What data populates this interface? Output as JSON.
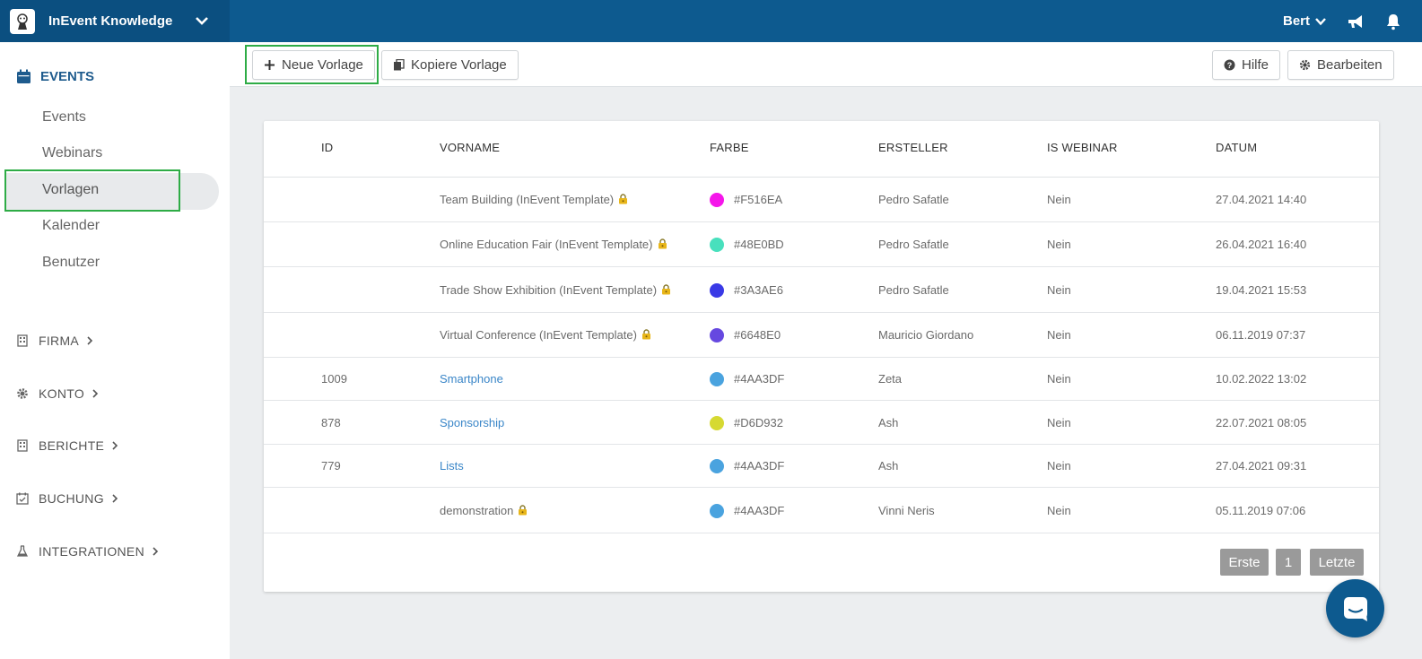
{
  "app": {
    "name": "InEvent Knowledge",
    "user": "Bert"
  },
  "sidebar": {
    "events_section": "EVENTS",
    "items": [
      {
        "label": "Events"
      },
      {
        "label": "Webinars"
      },
      {
        "label": "Vorlagen"
      },
      {
        "label": "Kalender"
      },
      {
        "label": "Benutzer"
      }
    ],
    "sections": [
      {
        "label": "FIRMA",
        "icon": "building-icon"
      },
      {
        "label": "KONTO",
        "icon": "gear-icon"
      },
      {
        "label": "BERICHTE",
        "icon": "building-icon"
      },
      {
        "label": "BUCHUNG",
        "icon": "calendar-check-icon"
      },
      {
        "label": "INTEGRATIONEN",
        "icon": "flask-icon"
      }
    ]
  },
  "toolbar": {
    "new_template": "Neue Vorlage",
    "copy_template": "Kopiere Vorlage",
    "help": "Hilfe",
    "edit": "Bearbeiten"
  },
  "table": {
    "headers": {
      "id": "ID",
      "name": "VORNAME",
      "color": "FARBE",
      "creator": "ERSTELLER",
      "webinar": "IS WEBINAR",
      "date": "DATUM"
    },
    "rows": [
      {
        "id": "",
        "name": "Team Building (InEvent Template)",
        "locked": true,
        "link": false,
        "color": "#F516EA",
        "creator": "Pedro Safatle",
        "webinar": "Nein",
        "date": "27.04.2021 14:40"
      },
      {
        "id": "",
        "name": "Online Education Fair (InEvent Template)",
        "locked": true,
        "link": false,
        "color": "#48E0BD",
        "creator": "Pedro Safatle",
        "webinar": "Nein",
        "date": "26.04.2021 16:40"
      },
      {
        "id": "",
        "name": "Trade Show Exhibition (InEvent Template)",
        "locked": true,
        "link": false,
        "color": "#3A3AE6",
        "creator": "Pedro Safatle",
        "webinar": "Nein",
        "date": "19.04.2021 15:53"
      },
      {
        "id": "",
        "name": "Virtual Conference (InEvent Template)",
        "locked": true,
        "link": false,
        "color": "#6648E0",
        "creator": "Mauricio Giordano",
        "webinar": "Nein",
        "date": "06.11.2019 07:37"
      },
      {
        "id": "1009",
        "name": "Smartphone",
        "locked": false,
        "link": true,
        "color": "#4AA3DF",
        "creator": "Zeta",
        "webinar": "Nein",
        "date": "10.02.2022 13:02"
      },
      {
        "id": "878",
        "name": "Sponsorship",
        "locked": false,
        "link": true,
        "color": "#D6D932",
        "creator": "Ash",
        "webinar": "Nein",
        "date": "22.07.2021 08:05"
      },
      {
        "id": "779",
        "name": "Lists",
        "locked": false,
        "link": true,
        "color": "#4AA3DF",
        "creator": "Ash",
        "webinar": "Nein",
        "date": "27.04.2021 09:31"
      },
      {
        "id": "",
        "name": "demonstration",
        "locked": true,
        "link": false,
        "color": "#4AA3DF",
        "creator": "Vinni Neris",
        "webinar": "Nein",
        "date": "05.11.2019 07:06"
      }
    ]
  },
  "pagination": {
    "first": "Erste",
    "page": "1",
    "last": "Letzte"
  },
  "colors": {
    "brand": "#0d5a8f",
    "highlight": "#2eac46",
    "link": "#3a86c8"
  }
}
